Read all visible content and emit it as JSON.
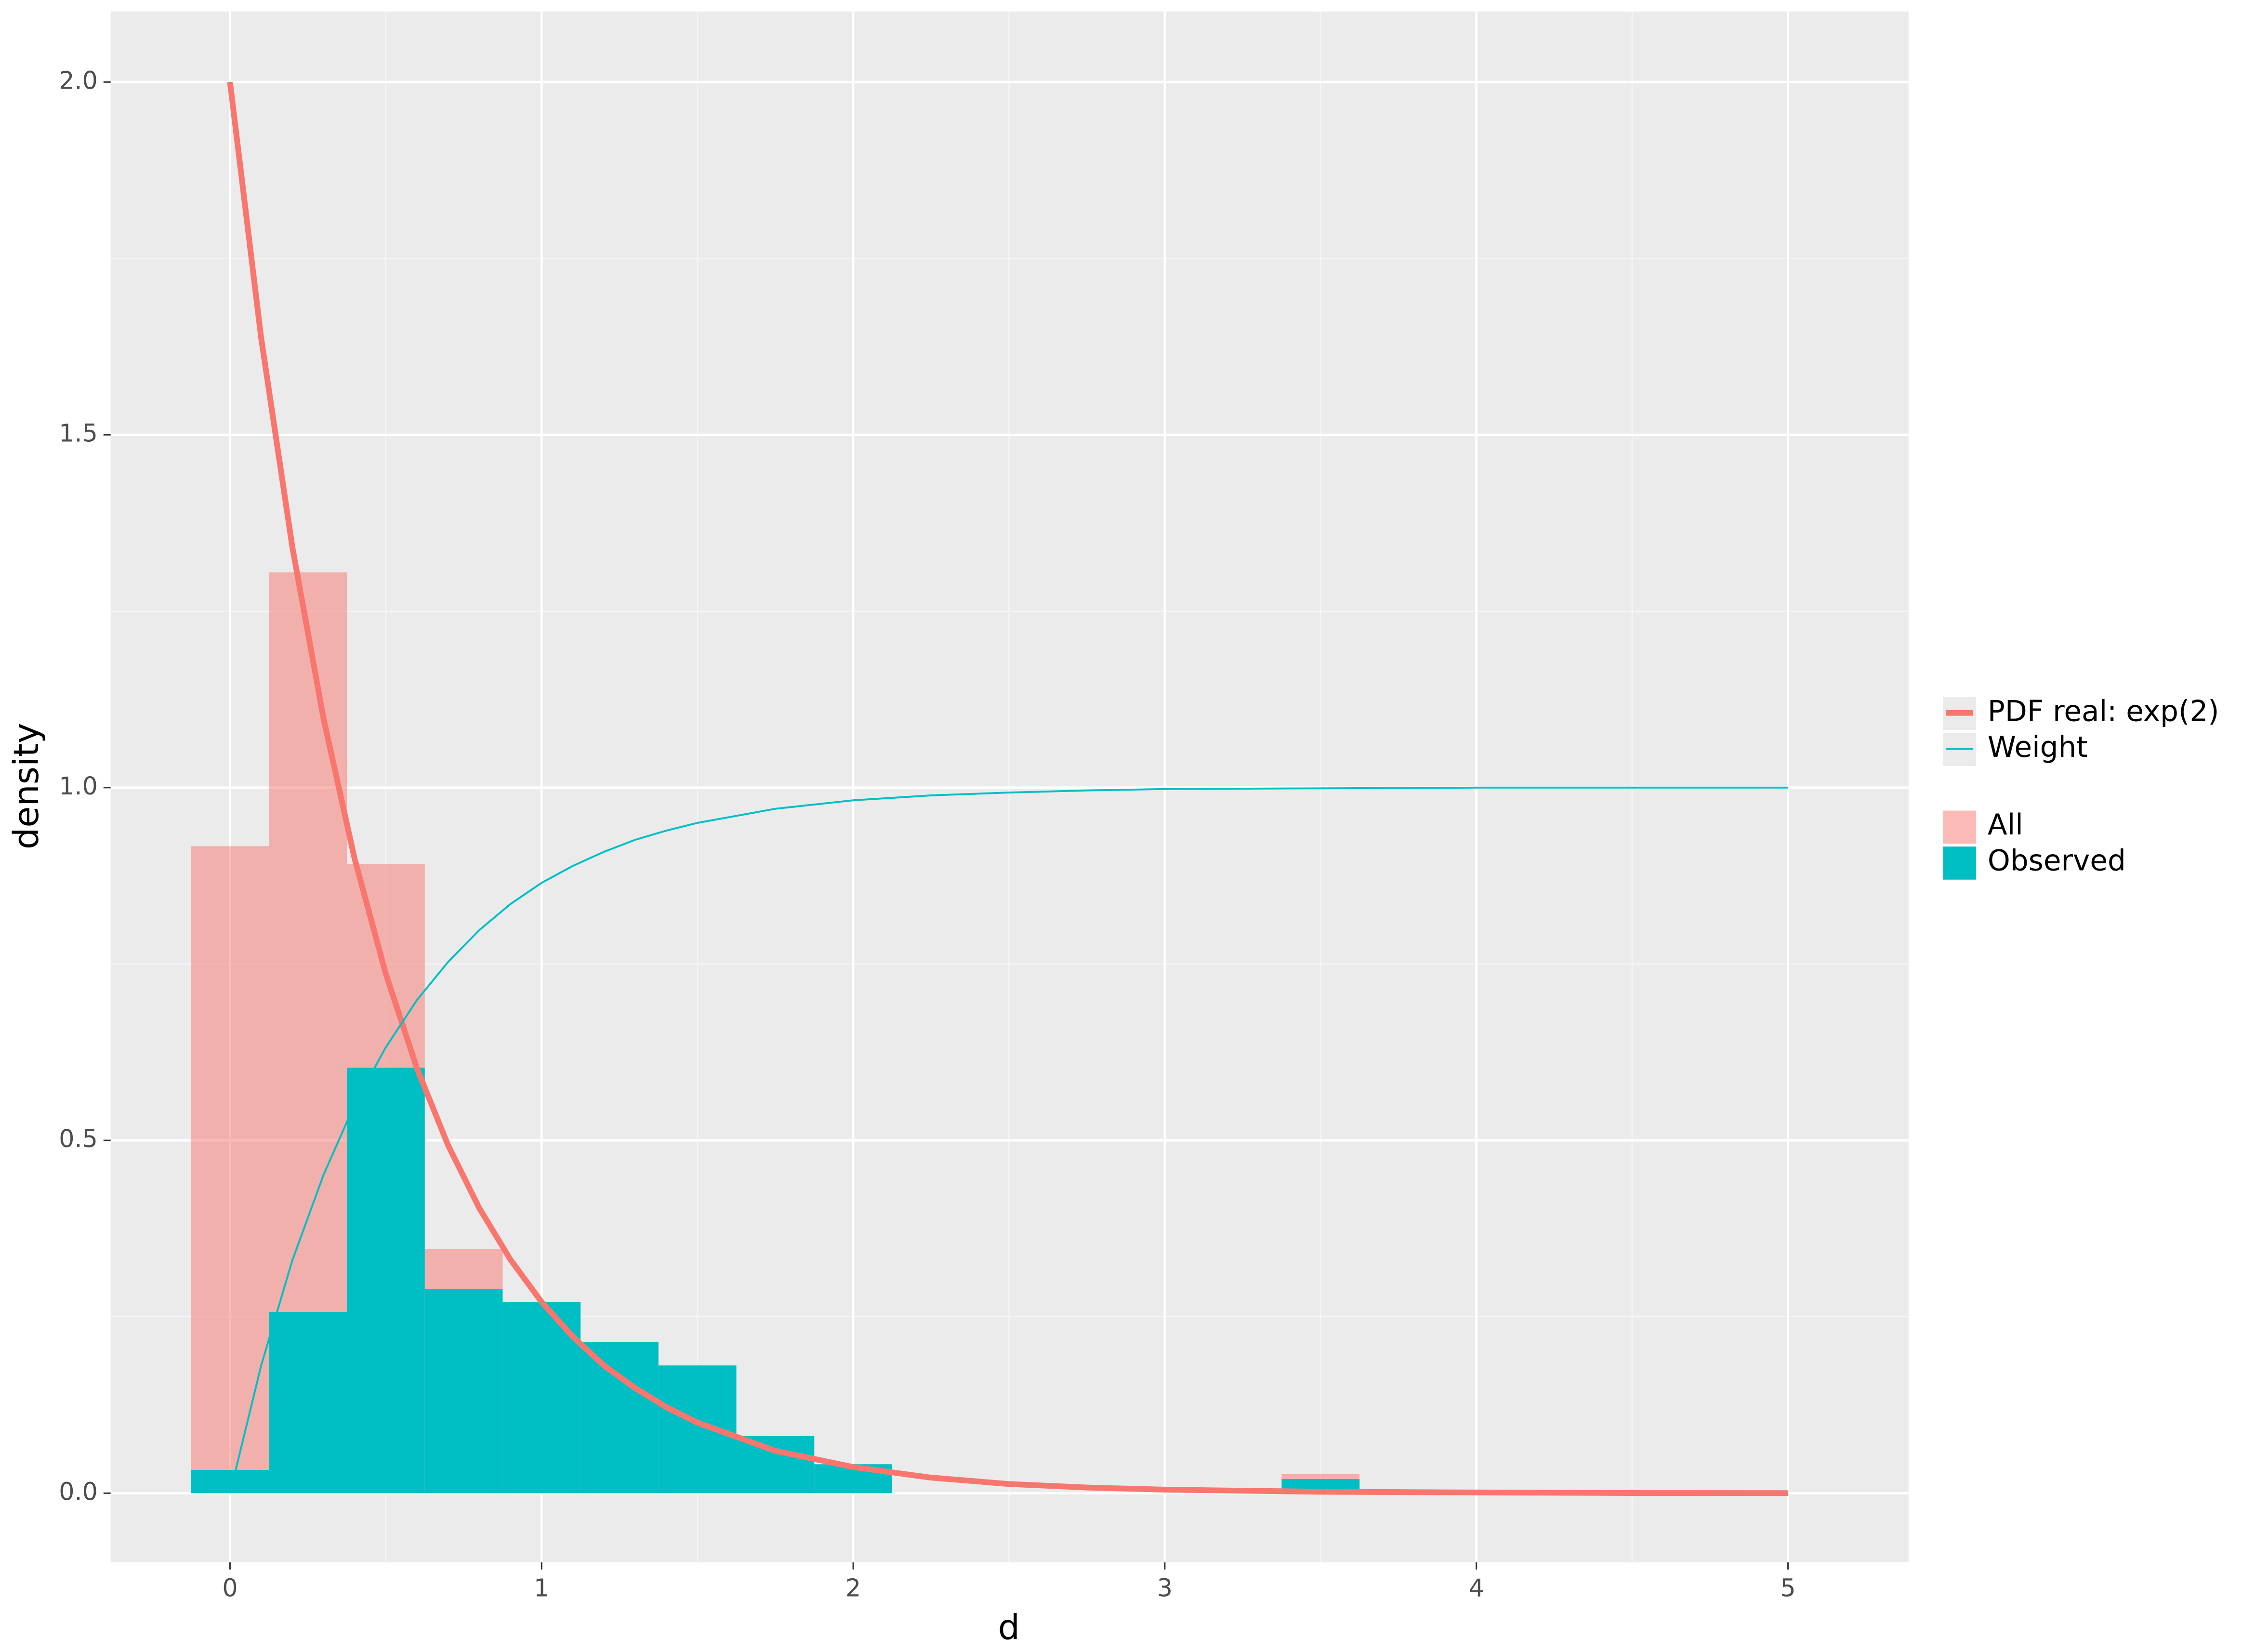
{
  "chart_data": {
    "type": "histogram",
    "x_label": "d",
    "y_label": "density",
    "xlim": [
      -0.383,
      5.387
    ],
    "ylim": [
      -0.098,
      2.1
    ],
    "xticks": [
      0,
      1,
      2,
      3,
      4,
      5
    ],
    "yticks": [
      {
        "value": 0,
        "label": "0.0"
      },
      0.5,
      {
        "value": 1,
        "label": "1.0"
      },
      1.5,
      {
        "value": 2,
        "label": "2.0"
      }
    ],
    "xminor": [
      0.5,
      1.5,
      2.5,
      3.5,
      4.5
    ],
    "yminor": [
      0.25,
      0.75,
      1.25,
      1.75
    ],
    "grid": true,
    "bins": [
      -0.125,
      0.125,
      0.375,
      0.625,
      0.875,
      1.125,
      1.375,
      1.625,
      1.875,
      2.125,
      2.375,
      2.625,
      2.875,
      3.125,
      3.375,
      3.625
    ],
    "series": [
      {
        "name": "All",
        "color": "#f8766d",
        "opacity": 0.5,
        "values": [
          0.917,
          1.305,
          0.892,
          0.346,
          0.271,
          0.214,
          0.181,
          0.081,
          0.041,
          0,
          0,
          0,
          0,
          0,
          0.027
        ]
      },
      {
        "name": "Observed",
        "color": "#00bfc4",
        "opacity": 1,
        "values": [
          0.033,
          0.257,
          0.603,
          0.289,
          0.271,
          0.214,
          0.181,
          0.081,
          0.041,
          0,
          0,
          0,
          0,
          0,
          0.02
        ]
      }
    ],
    "overlay": {
      "type": "line",
      "x": [
        0,
        0.1,
        0.2,
        0.3,
        0.4,
        0.5,
        0.6,
        0.7,
        0.8,
        0.9,
        1.0,
        1.1,
        1.2,
        1.3,
        1.4,
        1.5,
        1.75,
        2,
        2.25,
        2.5,
        2.75,
        3,
        3.5,
        4,
        4.5,
        5
      ],
      "series": [
        {
          "name": "PDF real: exp(2)",
          "color": "#f8766d",
          "width": 4,
          "values": [
            2,
            1.637,
            1.341,
            1.098,
            0.899,
            0.736,
            0.602,
            0.493,
            0.404,
            0.331,
            0.271,
            0.222,
            0.181,
            0.149,
            0.122,
            0.1,
            0.06,
            0.037,
            0.022,
            0.013,
            0.008,
            0.005,
            0.002,
            0.001,
            0.0002,
            0.0001
          ]
        },
        {
          "name": "Weight",
          "color": "#00bfc4",
          "width": 1.3,
          "values": [
            0,
            0.181,
            0.33,
            0.451,
            0.551,
            0.632,
            0.699,
            0.753,
            0.798,
            0.835,
            0.865,
            0.889,
            0.909,
            0.926,
            0.939,
            0.95,
            0.97,
            0.982,
            0.989,
            0.993,
            0.996,
            0.998,
            0.999,
            1,
            1,
            1
          ]
        }
      ]
    }
  }
}
